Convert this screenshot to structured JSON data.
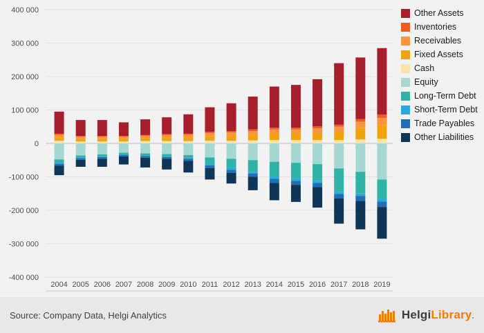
{
  "chart_data": {
    "type": "bar",
    "stacked": true,
    "title": "",
    "xlabel": "",
    "ylabel": "",
    "grid": true,
    "legend_position": "right",
    "ylim": [
      -400000,
      400000
    ],
    "ytick_step": 100000,
    "ytick_labels": [
      "400 000",
      "300 000",
      "200 000",
      "100 000",
      "0",
      "-100 000",
      "-200 000",
      "-300 000",
      "-400 000"
    ],
    "categories": [
      "2004",
      "2005",
      "2006",
      "2007",
      "2008",
      "2009",
      "2010",
      "2011",
      "2012",
      "2013",
      "2014",
      "2015",
      "2016",
      "2017",
      "2018",
      "2019"
    ],
    "stack_order": [
      "Cash",
      "Fixed Assets",
      "Receivables",
      "Inventories",
      "Other Assets",
      "Equity",
      "Long-Term Debt",
      "Short-Term Debt",
      "Trade Payables",
      "Other Liabilities"
    ],
    "series": [
      {
        "name": "Other Assets",
        "color": "#a81e2d",
        "values": [
          66000,
          48000,
          48000,
          41000,
          47000,
          50000,
          58000,
          73000,
          83000,
          98000,
          123000,
          128000,
          141000,
          184000,
          184000,
          199000
        ]
      },
      {
        "name": "Inventories",
        "color": "#f15a22",
        "values": [
          3000,
          2000,
          2000,
          2000,
          2000,
          3000,
          3000,
          4000,
          4000,
          5000,
          5000,
          5000,
          6000,
          6000,
          8000,
          10000
        ]
      },
      {
        "name": "Receivables",
        "color": "#f8953d",
        "values": [
          8000,
          6000,
          6000,
          6000,
          7000,
          8000,
          8000,
          10000,
          11000,
          12000,
          14000,
          14000,
          15000,
          15000,
          18000,
          22000
        ]
      },
      {
        "name": "Fixed Assets",
        "color": "#f0a30a",
        "values": [
          10000,
          8000,
          8000,
          8000,
          9000,
          10000,
          11000,
          13000,
          14000,
          16000,
          18000,
          18000,
          20000,
          25000,
          35000,
          40000
        ]
      },
      {
        "name": "Cash",
        "color": "#fbe2a9",
        "values": [
          8000,
          6000,
          6000,
          6000,
          7000,
          7000,
          7000,
          8000,
          8000,
          9000,
          10000,
          10000,
          10000,
          10000,
          12000,
          14000
        ]
      },
      {
        "name": "Equity",
        "color": "#a5d8d2",
        "values": [
          -48000,
          -36000,
          -33000,
          -28000,
          -30000,
          -32000,
          -35000,
          -42000,
          -46000,
          -50000,
          -55000,
          -58000,
          -62000,
          -75000,
          -85000,
          -108000
        ]
      },
      {
        "name": "Long-Term Debt",
        "color": "#2fb3a6",
        "values": [
          -10000,
          -6000,
          -6000,
          -5000,
          -6000,
          -7000,
          -8000,
          -20000,
          -28000,
          -35000,
          -45000,
          -48000,
          -50000,
          -70000,
          -65000,
          -58000
        ]
      },
      {
        "name": "Short-Term Debt",
        "color": "#28a9e0",
        "values": [
          -3000,
          -2000,
          -2000,
          -2000,
          -2000,
          -2000,
          -3000,
          -4000,
          -5000,
          -5000,
          -6000,
          -6000,
          -6000,
          -6000,
          -7000,
          -8000
        ]
      },
      {
        "name": "Trade Payables",
        "color": "#1d70b8",
        "values": [
          -6000,
          -5000,
          -5000,
          -4000,
          -5000,
          -5000,
          -6000,
          -8000,
          -9000,
          -10000,
          -12000,
          -12000,
          -13000,
          -14000,
          -15000,
          -16000
        ]
      },
      {
        "name": "Other Liabilities",
        "color": "#0f3558",
        "values": [
          -28000,
          -21000,
          -24000,
          -24000,
          -29000,
          -32000,
          -35000,
          -34000,
          -32000,
          -40000,
          -52000,
          -51000,
          -61000,
          -75000,
          -85000,
          -95000
        ]
      }
    ]
  },
  "footer": {
    "source": "Source: Company Data, Helgi Analytics",
    "brand": {
      "primary": "Helgi",
      "secondary": "Library",
      "suffix": "."
    }
  }
}
